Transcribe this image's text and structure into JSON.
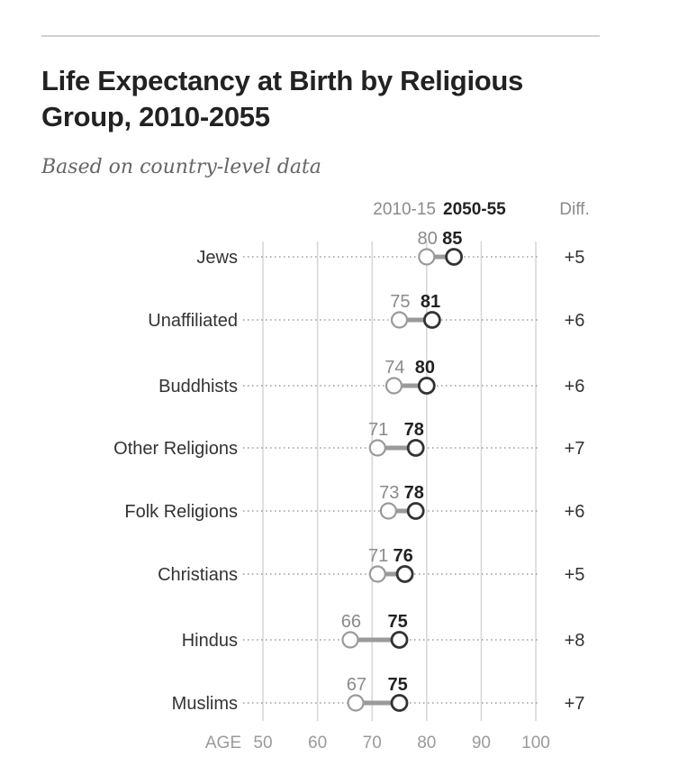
{
  "title": "Life Expectancy at Birth by Religious Group, 2010-2055",
  "subtitle": "Based on country-level data",
  "chart_data": {
    "type": "dumbbell",
    "xlabel": "AGE",
    "xlim": [
      50,
      100
    ],
    "xticks": [
      50,
      60,
      70,
      80,
      90,
      100
    ],
    "column_headers": {
      "start": "2010-15",
      "end": "2050-55",
      "diff": "Diff."
    },
    "categories": [
      "Jews",
      "Unaffiliated",
      "Buddhists",
      "Other Religions",
      "Folk Religions",
      "Christians",
      "Hindus",
      "Muslims"
    ],
    "series": [
      {
        "name": "2010-15",
        "values": [
          80,
          75,
          74,
          71,
          73,
          71,
          66,
          67
        ]
      },
      {
        "name": "2050-55",
        "values": [
          85,
          81,
          80,
          78,
          78,
          76,
          75,
          75
        ]
      }
    ],
    "diff_labels": [
      "+5",
      "+6",
      "+6",
      "+7",
      "+6",
      "+5",
      "+8",
      "+7"
    ],
    "colors": {
      "start": "#9a9a9a",
      "end": "#333333",
      "connector": "#9a9a9a",
      "grid": "#d6d6d6"
    }
  }
}
